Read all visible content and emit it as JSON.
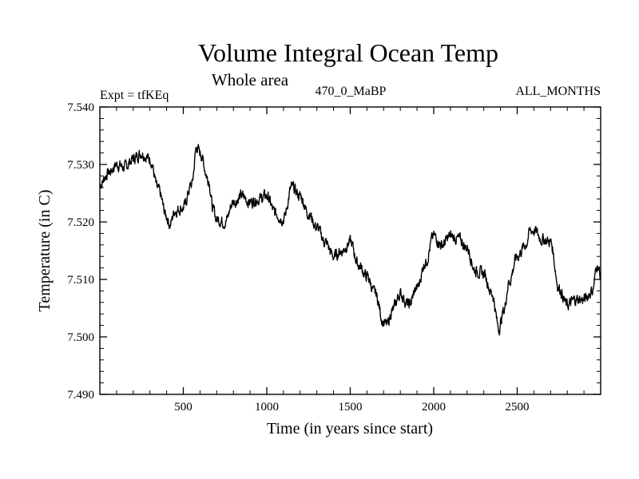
{
  "chart_data": {
    "type": "line",
    "title": "Volume Integral Ocean Temp",
    "subtitle": "Whole area",
    "experiment_label": "Expt = tfKEq",
    "run_label": "470_0_MaBP",
    "period_label": "ALL_MONTHS",
    "xlabel": "Time (in years since start)",
    "ylabel": "Temperature (in C)",
    "xlim": [
      0,
      3000
    ],
    "ylim": [
      7.49,
      7.54
    ],
    "x_ticks": [
      500,
      1000,
      1500,
      2000,
      2500
    ],
    "y_ticks": [
      "7.490",
      "7.500",
      "7.510",
      "7.520",
      "7.530",
      "7.540"
    ],
    "grid": false,
    "series": [
      {
        "x": [
          0,
          50,
          100,
          150,
          200,
          250,
          300,
          350,
          400,
          420,
          450,
          500,
          550,
          580,
          600,
          650,
          680,
          700,
          750,
          800,
          850,
          900,
          950,
          1000,
          1050,
          1100,
          1150,
          1200,
          1250,
          1300,
          1350,
          1400,
          1450,
          1500,
          1550,
          1600,
          1650,
          1700,
          1720,
          1750,
          1800,
          1850,
          1900,
          1950,
          2000,
          2050,
          2100,
          2150,
          2200,
          2250,
          2300,
          2350,
          2390,
          2420,
          2450,
          2500,
          2550,
          2580,
          2600,
          2650,
          2700,
          2750,
          2800,
          2850,
          2900,
          2950,
          2980,
          3000
        ],
        "y": [
          7.5265,
          7.5285,
          7.53,
          7.5295,
          7.531,
          7.532,
          7.531,
          7.5255,
          7.521,
          7.5195,
          7.522,
          7.5225,
          7.5265,
          7.533,
          7.532,
          7.5275,
          7.522,
          7.5205,
          7.52,
          7.5235,
          7.5245,
          7.5235,
          7.524,
          7.5245,
          7.5215,
          7.5205,
          7.526,
          7.5245,
          7.5215,
          7.519,
          7.5165,
          7.514,
          7.515,
          7.5165,
          7.5125,
          7.5105,
          7.5075,
          7.5025,
          7.502,
          7.5045,
          7.5075,
          7.5055,
          7.5085,
          7.513,
          7.5175,
          7.516,
          7.5175,
          7.517,
          7.5155,
          7.5115,
          7.511,
          7.5075,
          7.5015,
          7.5045,
          7.5095,
          7.514,
          7.516,
          7.5185,
          7.5185,
          7.517,
          7.5165,
          7.5085,
          7.5055,
          7.5065,
          7.5065,
          7.508,
          7.5125,
          7.5105
        ]
      }
    ]
  }
}
